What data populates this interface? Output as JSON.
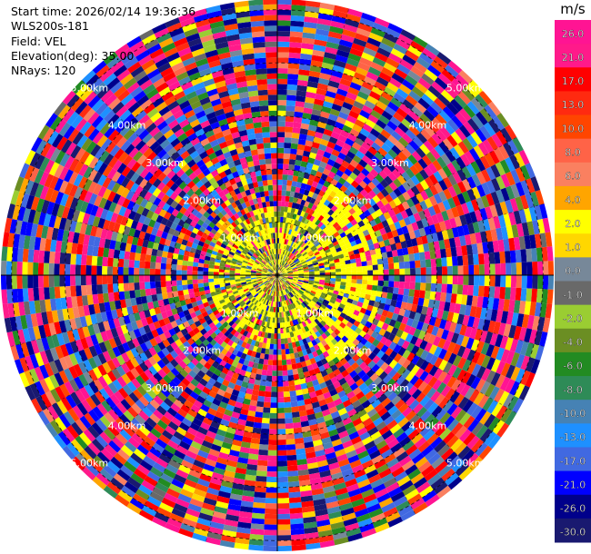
{
  "header": {
    "start_time": "Start time: 2026/02/14 19:36:36",
    "instrument": "WLS200s-181",
    "field": "Field: VEL",
    "elevation": "Elevation(deg): 35.00",
    "nrays": "NRays: 120"
  },
  "chart_data": {
    "type": "heatmap",
    "subtype": "polar-ppi",
    "field": "VEL",
    "units": "m/s",
    "n_rays": 120,
    "range_rings_km": [
      1.0,
      2.0,
      3.0,
      4.0,
      5.0
    ],
    "ring_label_text": [
      "1.00km",
      "2.00km",
      "3.00km",
      "4.00km",
      "5.00km"
    ],
    "max_range_km": 5.2,
    "gate_km": 0.1,
    "colorbar": {
      "unit_label": "m/s",
      "range": [
        -30,
        30
      ],
      "tick_labels": [
        "26.0",
        "21.0",
        "17.0",
        "13.0",
        "10.0",
        "8.0",
        "6.0",
        "4.0",
        "2.0",
        "1.0",
        "0.0",
        "-1.0",
        "-2.0",
        "-4.0",
        "-6.0",
        "-8.0",
        "-10.0",
        "-13.0",
        "-17.0",
        "-21.0",
        "-26.0",
        "-30.0"
      ],
      "bins": [
        {
          "min": 26,
          "max": 30,
          "color": "#ff1493"
        },
        {
          "min": 21,
          "max": 26,
          "color": "#ff1a8a"
        },
        {
          "min": 17,
          "max": 21,
          "color": "#ff0000"
        },
        {
          "min": 13,
          "max": 17,
          "color": "#ff2a10"
        },
        {
          "min": 10,
          "max": 13,
          "color": "#ff4500"
        },
        {
          "min": 8,
          "max": 10,
          "color": "#ff6347"
        },
        {
          "min": 6,
          "max": 8,
          "color": "#fa8060"
        },
        {
          "min": 4,
          "max": 6,
          "color": "#ffa500"
        },
        {
          "min": 2,
          "max": 4,
          "color": "#ffff00"
        },
        {
          "min": 1,
          "max": 2,
          "color": "#ffd700"
        },
        {
          "min": 0,
          "max": 1,
          "color": "#778899"
        },
        {
          "min": -1,
          "max": 0,
          "color": "#696969"
        },
        {
          "min": -2,
          "max": -1,
          "color": "#9acd32"
        },
        {
          "min": -4,
          "max": -2,
          "color": "#6b8e23"
        },
        {
          "min": -6,
          "max": -4,
          "color": "#228b22"
        },
        {
          "min": -8,
          "max": -6,
          "color": "#2e8b57"
        },
        {
          "min": -10,
          "max": -8,
          "color": "#4682b4"
        },
        {
          "min": -13,
          "max": -10,
          "color": "#1e90ff"
        },
        {
          "min": -17,
          "max": -13,
          "color": "#4169e1"
        },
        {
          "min": -21,
          "max": -17,
          "color": "#0000ff"
        },
        {
          "min": -26,
          "max": -21,
          "color": "#00008b"
        },
        {
          "min": -30,
          "max": -26,
          "color": "#191970"
        }
      ]
    },
    "field_description": {
      "inner_zone_km": [
        0.0,
        1.3
      ],
      "inner_dominant": "yellow (2 to 4 m/s) on south/west, olive green (-2 to -4 m/s) near center-south",
      "outer_zone": "noise: random velocities across full -30 to 30 m/s range"
    }
  }
}
